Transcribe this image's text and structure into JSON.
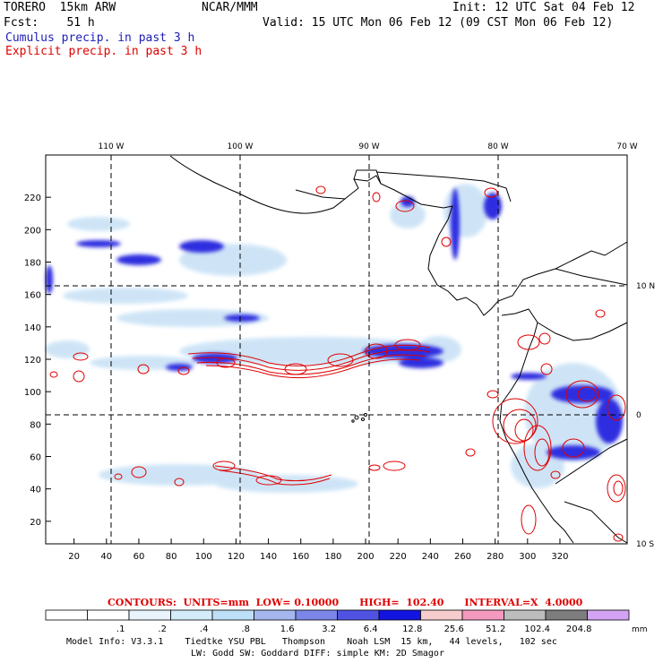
{
  "header": {
    "model": "TORERO  15km ARW",
    "org": "NCAR/MMM",
    "init": "Init: 12 UTC Sat 04 Feb 12",
    "fcst": "Fcst:    51 h",
    "valid": "Valid: 15 UTC Mon 06 Feb 12 (09 CST Mon 06 Feb 12)",
    "line_cumulus": "Cumulus precip. in past 3 h",
    "line_explicit": "Explicit precip. in past 3 h"
  },
  "map": {
    "top_lon_labels": [
      "110 W",
      "100 W",
      "90 W",
      "80 W",
      "70 W"
    ],
    "right_lat_labels": [
      "10 N",
      "0",
      "10 S"
    ],
    "y_ticks": [
      "220",
      "200",
      "180",
      "160",
      "140",
      "120",
      "100",
      "80",
      "60",
      "40",
      "20"
    ],
    "x_ticks": [
      "20",
      "40",
      "60",
      "80",
      "100",
      "120",
      "140",
      "160",
      "180",
      "200",
      "220",
      "240",
      "260",
      "280",
      "300",
      "320"
    ]
  },
  "contours": {
    "text": "CONTOURS:  UNITS=mm  LOW= 0.10000      HIGH=  102.40      INTERVAL=X  4.0000"
  },
  "colorbar": {
    "thresholds": [
      ".1",
      ".2",
      ".4",
      ".8",
      "1.6",
      "3.2",
      "6.4",
      "12.8",
      "25.6",
      "51.2",
      "102.4",
      "204.8"
    ],
    "unit": "mm",
    "colors": [
      "#ffffff",
      "#ffffff",
      "#e9f3fb",
      "#d4ebfa",
      "#bde0f7",
      "#a6b6ef",
      "#7c86e8",
      "#5053e2",
      "#1414e0",
      "#f6cccc",
      "#f49abf",
      "#bdbdbd",
      "#7d7d7d",
      "#d2a4f3"
    ]
  },
  "footer": {
    "line1": "Model Info: V3.3.1    Tiedtke YSU PBL   Thompson    Noah LSM  15 km,   44 levels,   102 sec",
    "line2": "LW: Godd SW: Goddard DIFF: simple KM: 2D Smagor"
  }
}
